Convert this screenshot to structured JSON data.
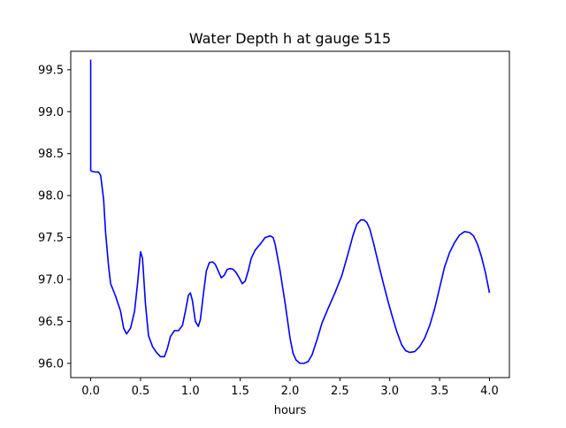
{
  "chart_data": {
    "type": "line",
    "title": "Water Depth h at gauge 515",
    "xlabel": "hours",
    "ylabel": "",
    "xlim": [
      -0.2,
      4.2
    ],
    "ylim": [
      95.83,
      99.72
    ],
    "xticks": [
      0.0,
      0.5,
      1.0,
      1.5,
      2.0,
      2.5,
      3.0,
      3.5,
      4.0
    ],
    "xtick_labels": [
      "0.0",
      "0.5",
      "1.0",
      "1.5",
      "2.0",
      "2.5",
      "3.0",
      "3.5",
      "4.0"
    ],
    "yticks": [
      96.0,
      96.5,
      97.0,
      97.5,
      98.0,
      98.5,
      99.0,
      99.5
    ],
    "ytick_labels": [
      "96.0",
      "96.5",
      "97.0",
      "97.5",
      "98.0",
      "98.5",
      "99.0",
      "99.5"
    ],
    "grid": false,
    "legend": "none",
    "series": [
      {
        "color": "#0000ff",
        "x": [
          0.0,
          0.0,
          0.01,
          0.05,
          0.08,
          0.1,
          0.13,
          0.15,
          0.18,
          0.2,
          0.25,
          0.3,
          0.33,
          0.36,
          0.4,
          0.44,
          0.47,
          0.5,
          0.52,
          0.55,
          0.58,
          0.62,
          0.66,
          0.7,
          0.74,
          0.77,
          0.8,
          0.84,
          0.88,
          0.92,
          0.95,
          0.98,
          1.0,
          1.02,
          1.05,
          1.08,
          1.1,
          1.13,
          1.16,
          1.19,
          1.22,
          1.25,
          1.28,
          1.31,
          1.34,
          1.37,
          1.4,
          1.43,
          1.46,
          1.49,
          1.52,
          1.55,
          1.58,
          1.61,
          1.65,
          1.7,
          1.75,
          1.8,
          1.83,
          1.85,
          1.9,
          1.95,
          2.0,
          2.03,
          2.06,
          2.1,
          2.14,
          2.18,
          2.22,
          2.27,
          2.32,
          2.38,
          2.45,
          2.52,
          2.58,
          2.63,
          2.67,
          2.71,
          2.74,
          2.77,
          2.8,
          2.84,
          2.88,
          2.93,
          2.98,
          3.02,
          3.07,
          3.12,
          3.16,
          3.2,
          3.25,
          3.3,
          3.35,
          3.4,
          3.45,
          3.5,
          3.55,
          3.6,
          3.65,
          3.7,
          3.75,
          3.8,
          3.84,
          3.88,
          3.92,
          3.96,
          4.0
        ],
        "y": [
          99.62,
          98.3,
          98.29,
          98.28,
          98.28,
          98.24,
          97.95,
          97.55,
          97.15,
          96.95,
          96.8,
          96.62,
          96.42,
          96.35,
          96.42,
          96.62,
          96.95,
          97.33,
          97.25,
          96.7,
          96.33,
          96.2,
          96.13,
          96.08,
          96.08,
          96.18,
          96.32,
          96.39,
          96.39,
          96.45,
          96.62,
          96.81,
          96.84,
          96.75,
          96.5,
          96.44,
          96.52,
          96.82,
          97.1,
          97.2,
          97.21,
          97.18,
          97.1,
          97.02,
          97.05,
          97.12,
          97.13,
          97.12,
          97.08,
          97.02,
          96.95,
          96.98,
          97.1,
          97.25,
          97.35,
          97.42,
          97.5,
          97.52,
          97.5,
          97.42,
          97.1,
          96.72,
          96.3,
          96.12,
          96.04,
          96.0,
          96.0,
          96.02,
          96.1,
          96.28,
          96.48,
          96.65,
          96.84,
          97.05,
          97.3,
          97.52,
          97.66,
          97.71,
          97.71,
          97.68,
          97.6,
          97.42,
          97.22,
          96.98,
          96.75,
          96.58,
          96.38,
          96.22,
          96.15,
          96.13,
          96.14,
          96.2,
          96.3,
          96.45,
          96.65,
          96.9,
          97.15,
          97.32,
          97.44,
          97.53,
          97.57,
          97.56,
          97.52,
          97.42,
          97.27,
          97.08,
          96.84
        ]
      }
    ]
  }
}
